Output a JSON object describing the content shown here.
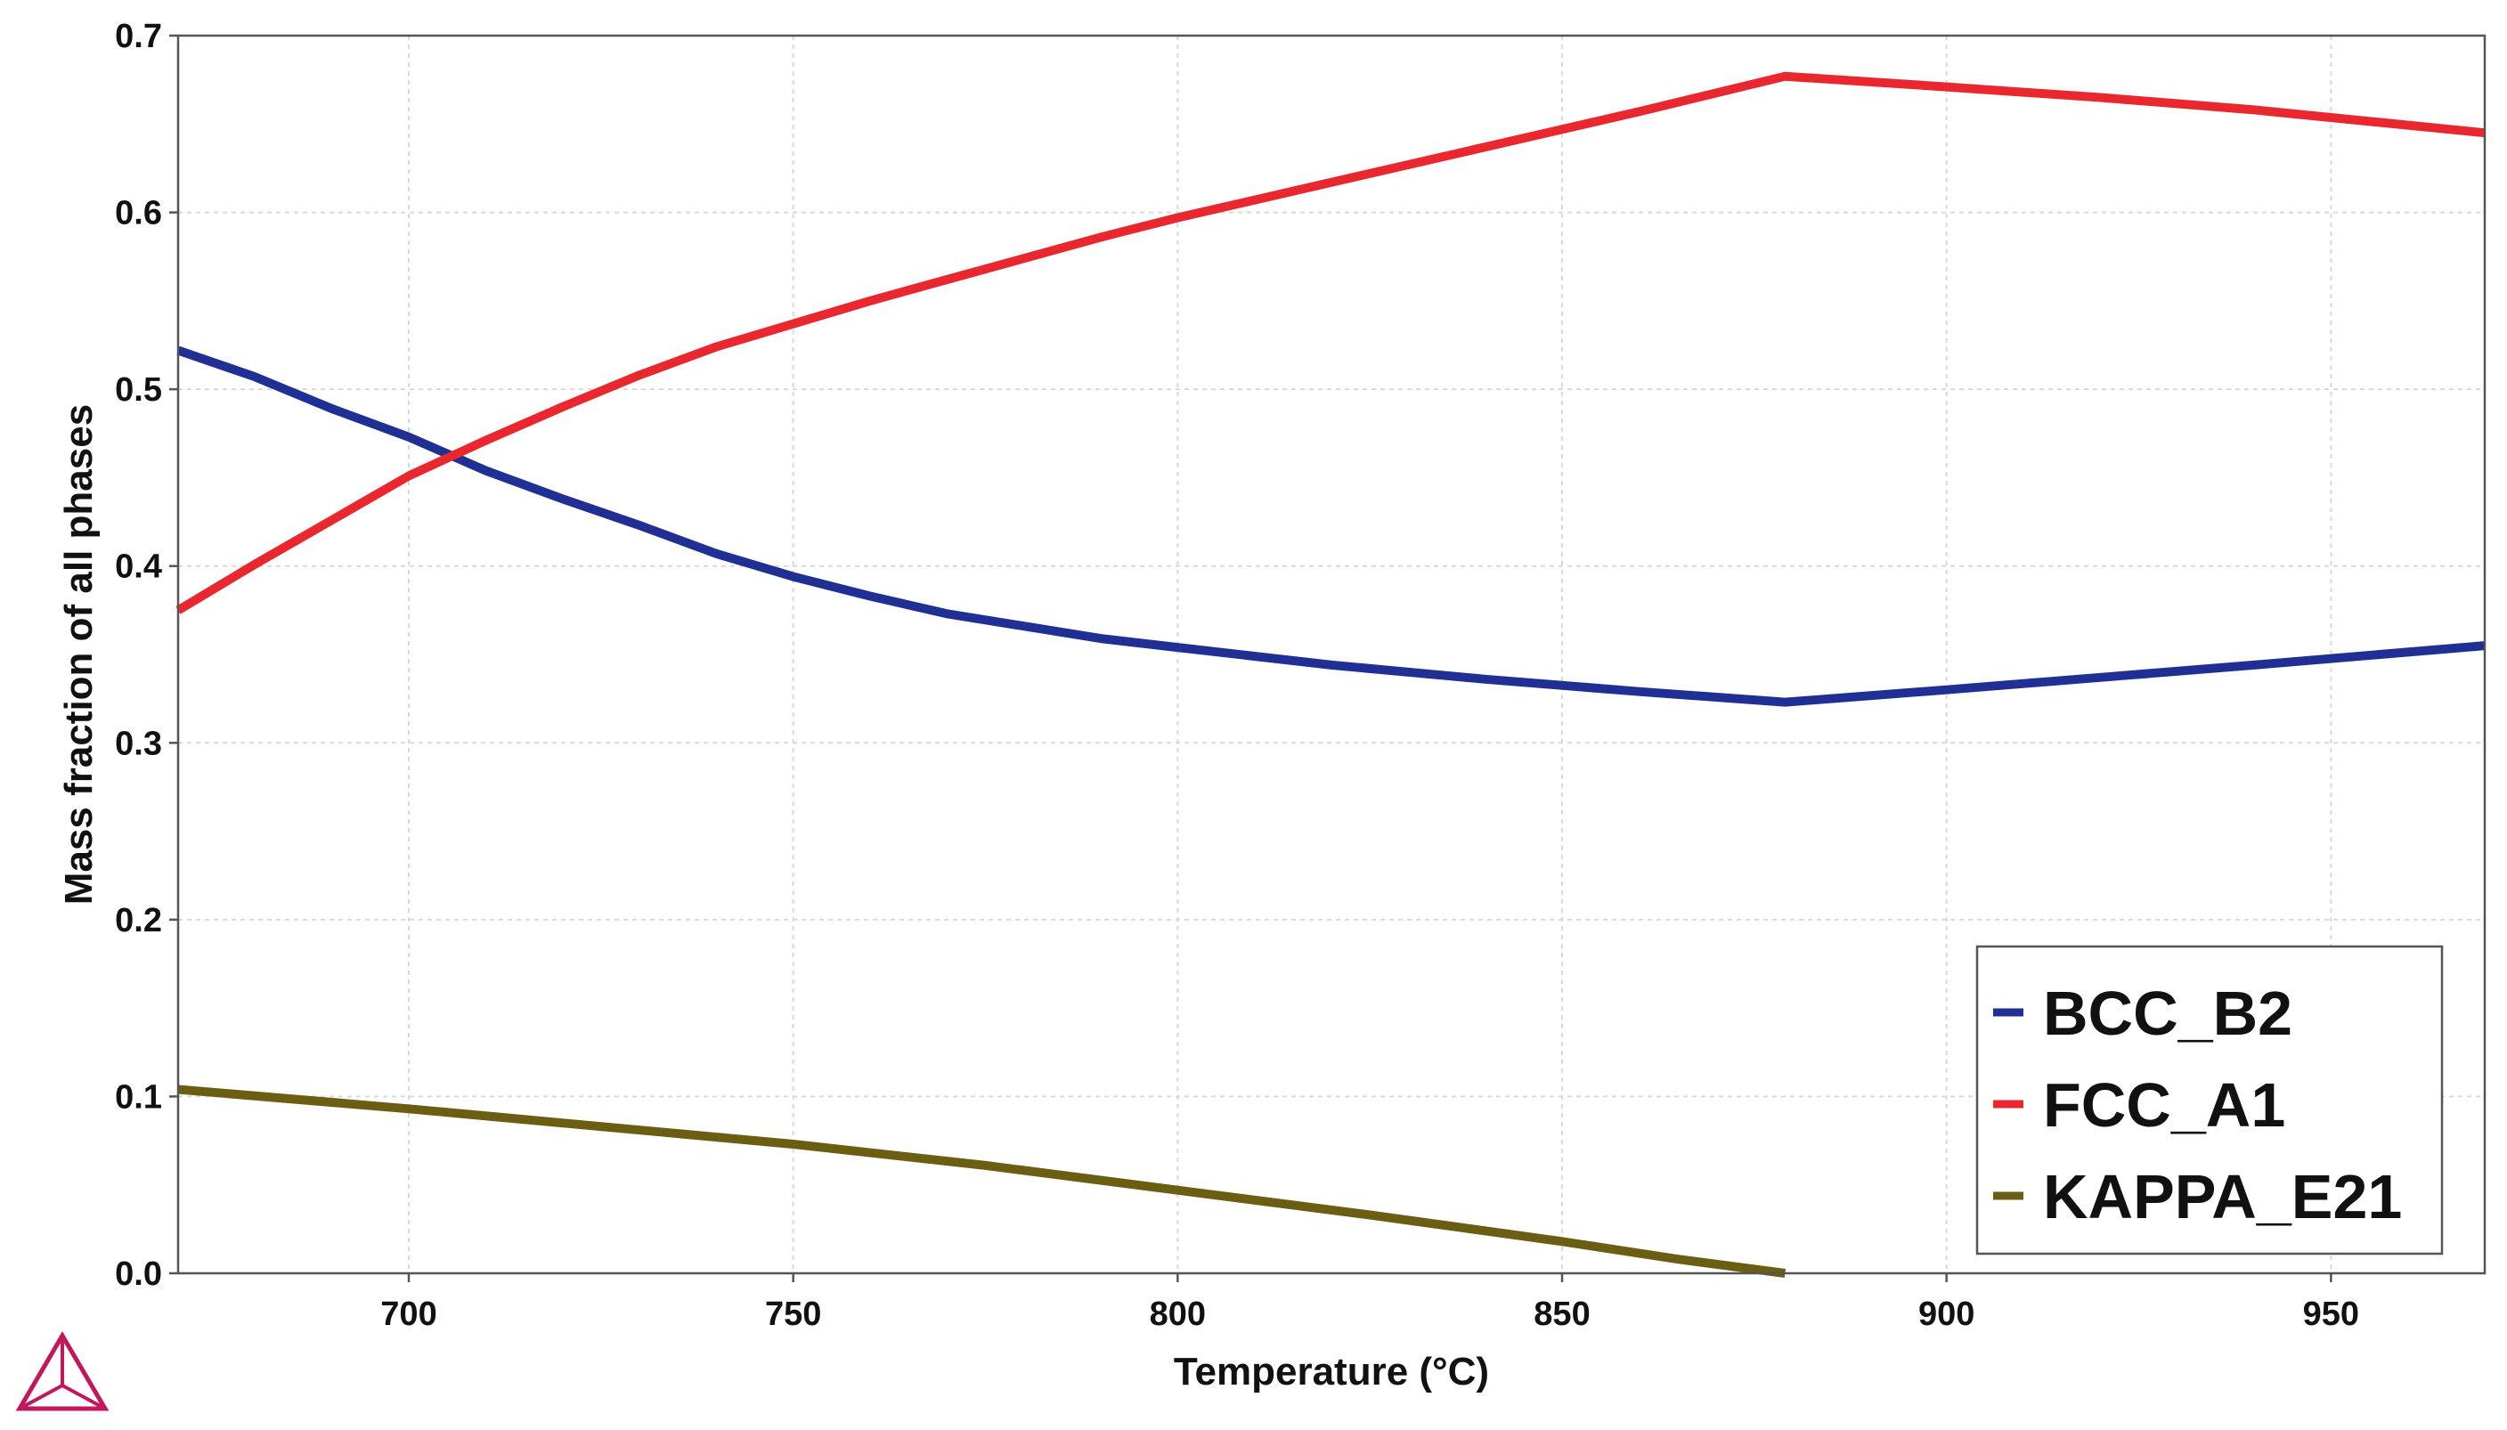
{
  "chart_data": {
    "type": "line",
    "title": "",
    "xlabel": "Temperature (°C)",
    "ylabel": "Mass fraction of all phases",
    "xlim": [
      670,
      970
    ],
    "ylim": [
      0.0,
      0.7
    ],
    "xticks": [
      700,
      750,
      800,
      850,
      900,
      950
    ],
    "yticks": [
      "0.0",
      "0.1",
      "0.2",
      "0.3",
      "0.4",
      "0.5",
      "0.6",
      "0.7"
    ],
    "grid": true,
    "legend_position": "bottom-right",
    "series": [
      {
        "name": "BCC_B2",
        "color": "#1f2f94",
        "x": [
          670,
          680,
          690,
          700,
          710,
          720,
          730,
          740,
          750,
          760,
          770,
          780,
          790,
          800,
          820,
          840,
          860,
          879,
          900,
          920,
          940,
          970
        ],
        "y": [
          0.522,
          0.507,
          0.489,
          0.473,
          0.454,
          0.438,
          0.423,
          0.407,
          0.394,
          0.383,
          0.373,
          0.366,
          0.359,
          0.354,
          0.344,
          0.336,
          0.329,
          0.323,
          0.33,
          0.337,
          0.344,
          0.355
        ]
      },
      {
        "name": "FCC_A1",
        "color": "#e8282e",
        "x": [
          670,
          680,
          690,
          700,
          710,
          720,
          730,
          740,
          750,
          760,
          770,
          780,
          790,
          800,
          820,
          840,
          860,
          879,
          900,
          920,
          940,
          970
        ],
        "y": [
          0.375,
          0.401,
          0.426,
          0.451,
          0.471,
          0.49,
          0.508,
          0.524,
          0.537,
          0.55,
          0.562,
          0.574,
          0.586,
          0.597,
          0.617,
          0.637,
          0.657,
          0.677,
          0.671,
          0.665,
          0.658,
          0.645
        ]
      },
      {
        "name": "KAPPA_E21",
        "color": "#6b5d12",
        "x": [
          670,
          700,
          725,
          750,
          775,
          800,
          825,
          850,
          865,
          879
        ],
        "y": [
          0.104,
          0.093,
          0.083,
          0.073,
          0.061,
          0.047,
          0.033,
          0.018,
          0.008,
          0.0
        ]
      }
    ]
  }
}
